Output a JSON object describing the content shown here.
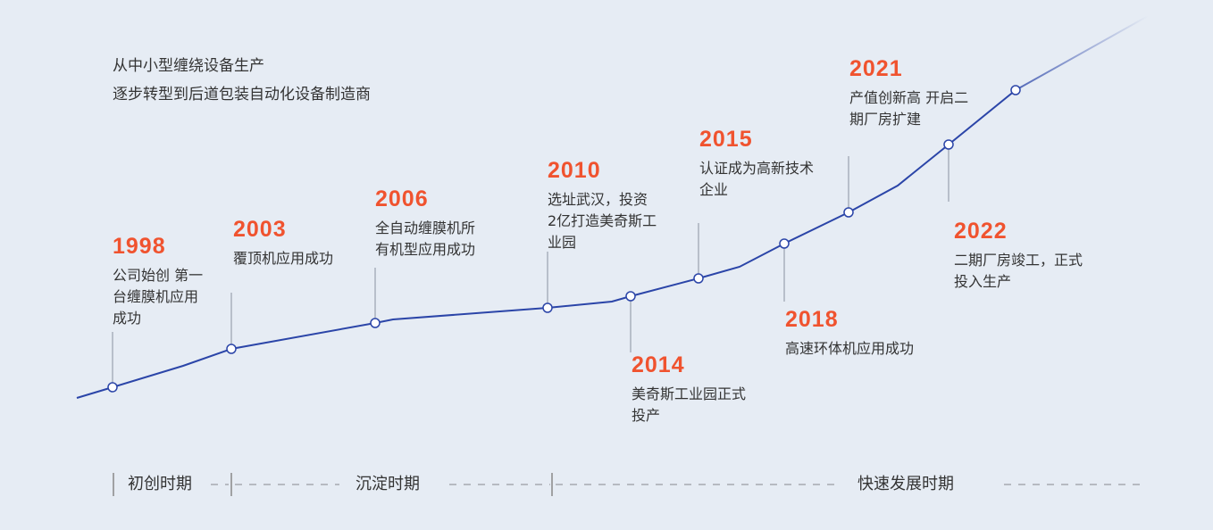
{
  "intro": {
    "line1": "从中小型缠绕设备生产",
    "line2": "逐步转型到后道包装自动化设备制造商"
  },
  "colors": {
    "background": "#e6ecf4",
    "line": "#2b45a8",
    "year": "#f0532f"
  },
  "events": [
    {
      "year": "1998",
      "text": "公司始创 第一\n台缠膜机应用\n成功"
    },
    {
      "year": "2003",
      "text": "覆顶机应用成功"
    },
    {
      "year": "2006",
      "text": "全自动缠膜机所\n有机型应用成功"
    },
    {
      "year": "2010",
      "text": "选址武汉，投资\n2亿打造美奇斯工\n业园"
    },
    {
      "year": "2014",
      "text": "美奇斯工业园正式\n投产"
    },
    {
      "year": "2015",
      "text": "认证成为高新技术\n企业"
    },
    {
      "year": "2018",
      "text": "高速环体机应用成功"
    },
    {
      "year": "2021",
      "text": "产值创新高 开启二\n期厂房扩建"
    },
    {
      "year": "2022",
      "text": "二期厂房竣工，正式\n投入生产"
    }
  ],
  "periods": [
    "初创时期",
    "沉淀时期",
    "快速发展时期"
  ]
}
